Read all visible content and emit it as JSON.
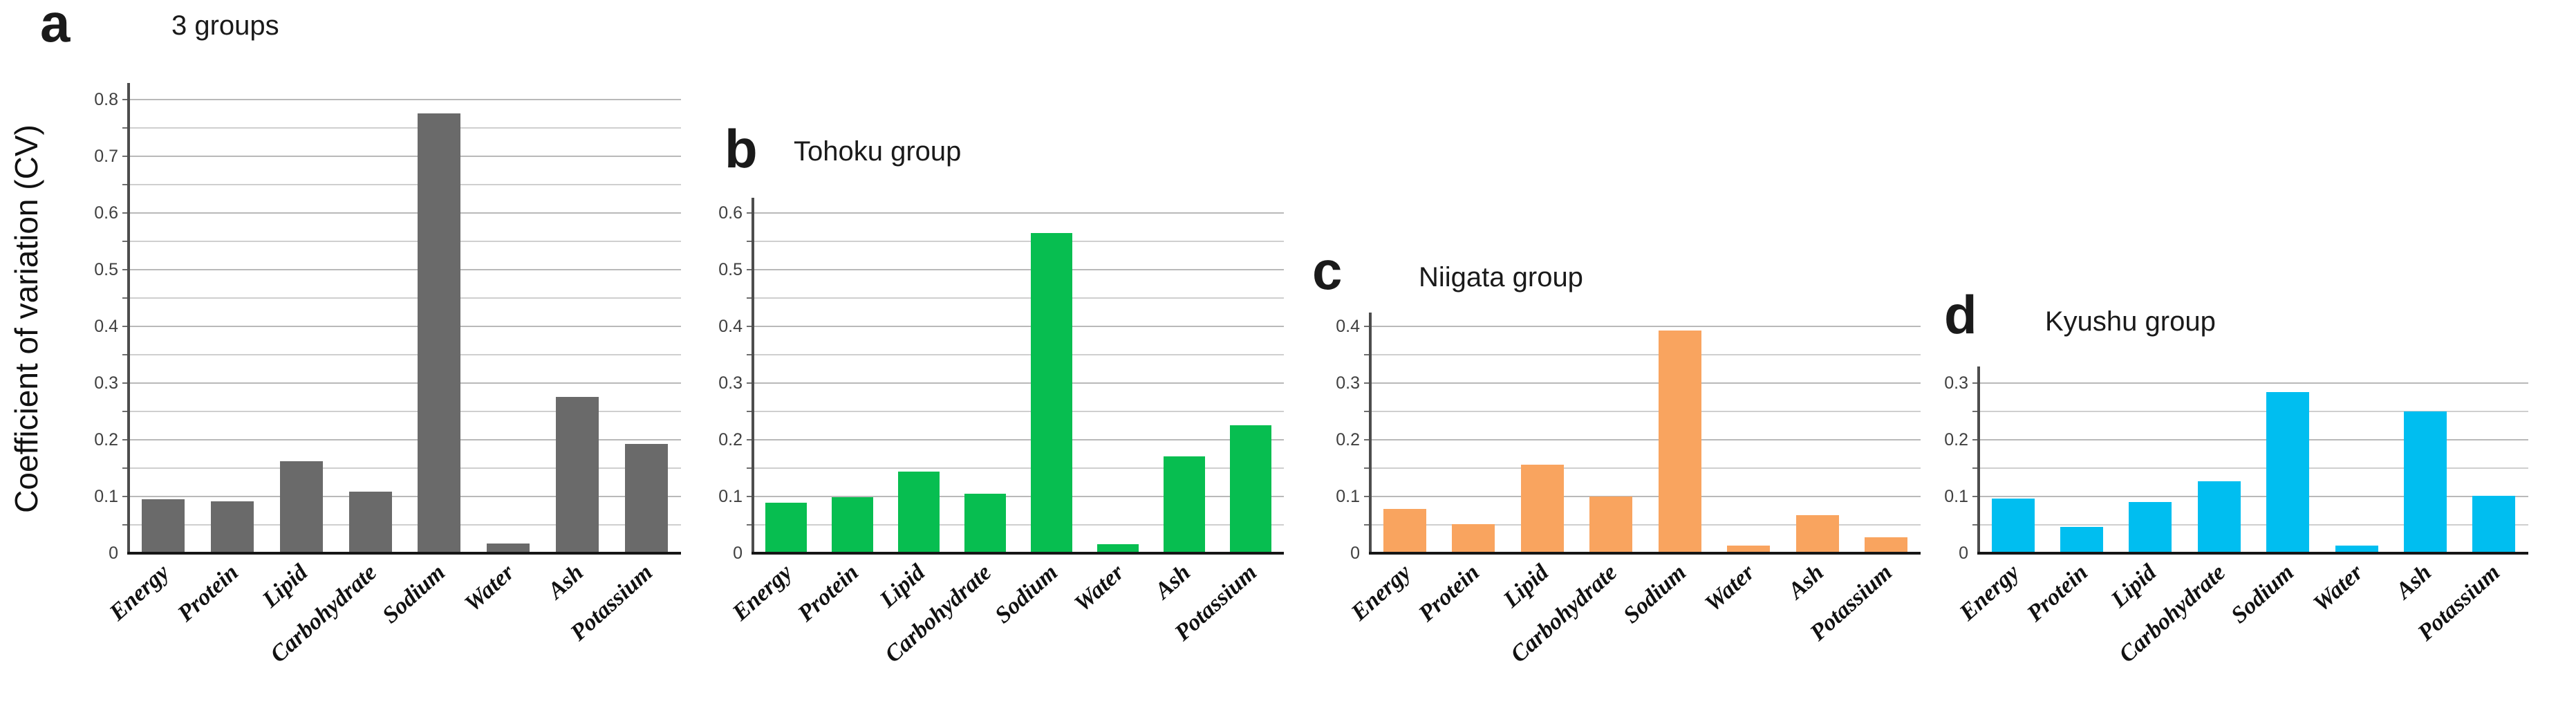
{
  "figure": {
    "ylabel": "Coefficient of variation (CV)"
  },
  "categories": [
    "Energy",
    "Protein",
    "Lipid",
    "Carbohydrate",
    "Sodium",
    "Water",
    "Ash",
    "Potassium"
  ],
  "chart_data": [
    {
      "type": "bar",
      "panel_letter": "a",
      "title": "3 groups",
      "color": "#6a6a6a",
      "categories": [
        "Energy",
        "Protein",
        "Lipid",
        "Carbohydrate",
        "Sodium",
        "Water",
        "Ash",
        "Potassium"
      ],
      "values": [
        0.095,
        0.092,
        0.162,
        0.109,
        0.775,
        0.017,
        0.276,
        0.193
      ],
      "ylabel": "Coefficient of variation (CV)",
      "ylim": [
        0,
        0.8
      ],
      "ytick_step": 0.1,
      "grid_minor_step": 0.05,
      "grid": "on",
      "legend": "none"
    },
    {
      "type": "bar",
      "panel_letter": "b",
      "title": "Tohoku group",
      "color": "#07be50",
      "categories": [
        "Energy",
        "Protein",
        "Lipid",
        "Carbohydrate",
        "Sodium",
        "Water",
        "Ash",
        "Potassium"
      ],
      "values": [
        0.089,
        0.099,
        0.144,
        0.105,
        0.565,
        0.016,
        0.171,
        0.226
      ],
      "ylim": [
        0,
        0.6
      ],
      "ytick_step": 0.1,
      "grid_minor_step": 0.05,
      "grid": "on",
      "legend": "none"
    },
    {
      "type": "bar",
      "panel_letter": "c",
      "title": "Niigata group",
      "color": "#f9a45f",
      "categories": [
        "Energy",
        "Protein",
        "Lipid",
        "Carbohydrate",
        "Sodium",
        "Water",
        "Ash",
        "Potassium"
      ],
      "values": [
        0.078,
        0.051,
        0.156,
        0.1,
        0.393,
        0.014,
        0.067,
        0.028
      ],
      "ylim": [
        0,
        0.4
      ],
      "ytick_step": 0.1,
      "grid_minor_step": 0.05,
      "grid": "on",
      "legend": "none"
    },
    {
      "type": "bar",
      "panel_letter": "d",
      "title": "Kyushu group",
      "color": "#00bef0",
      "categories": [
        "Energy",
        "Protein",
        "Lipid",
        "Carbohydrate",
        "Sodium",
        "Water",
        "Ash",
        "Potassium"
      ],
      "values": [
        0.096,
        0.046,
        0.09,
        0.127,
        0.284,
        0.014,
        0.25,
        0.101
      ],
      "ylim": [
        0,
        0.3
      ],
      "ytick_step": 0.1,
      "grid_minor_step": 0.05,
      "grid": "on",
      "legend": "none"
    }
  ]
}
